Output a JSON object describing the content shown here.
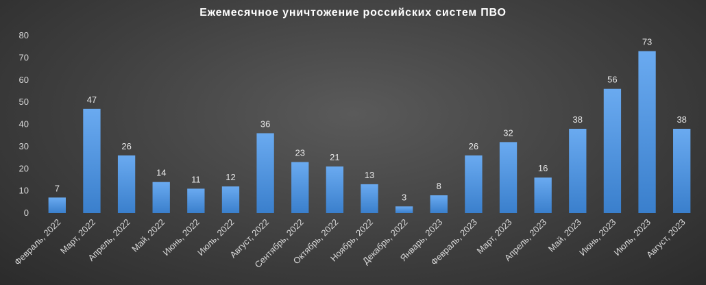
{
  "chart_data": {
    "type": "bar",
    "title": "Ежемесячное уничтожение российских систем ПВО",
    "xlabel": "",
    "ylabel": "",
    "ylim": [
      0,
      80
    ],
    "yticks": [
      0,
      10,
      20,
      30,
      40,
      50,
      60,
      70,
      80
    ],
    "grid": false,
    "legend": "none",
    "bar_color": "#4a8fd8",
    "categories": [
      "Февраль, 2022",
      "Март, 2022",
      "Апрель, 2022",
      "Май, 2022",
      "Июнь, 2022",
      "Июль, 2022",
      "Август, 2022",
      "Сентябрь, 2022",
      "Октябрь, 2022",
      "Ноябрь, 2022",
      "Декабрь, 2022",
      "Январь, 2023",
      "Февраль, 2023",
      "Март, 2023",
      "Апрель, 2023",
      "Май, 2023",
      "Июнь, 2023",
      "Июль, 2023",
      "Август, 2023"
    ],
    "values": [
      7,
      47,
      26,
      14,
      11,
      12,
      36,
      23,
      21,
      13,
      3,
      8,
      26,
      32,
      16,
      38,
      56,
      73,
      38
    ]
  }
}
